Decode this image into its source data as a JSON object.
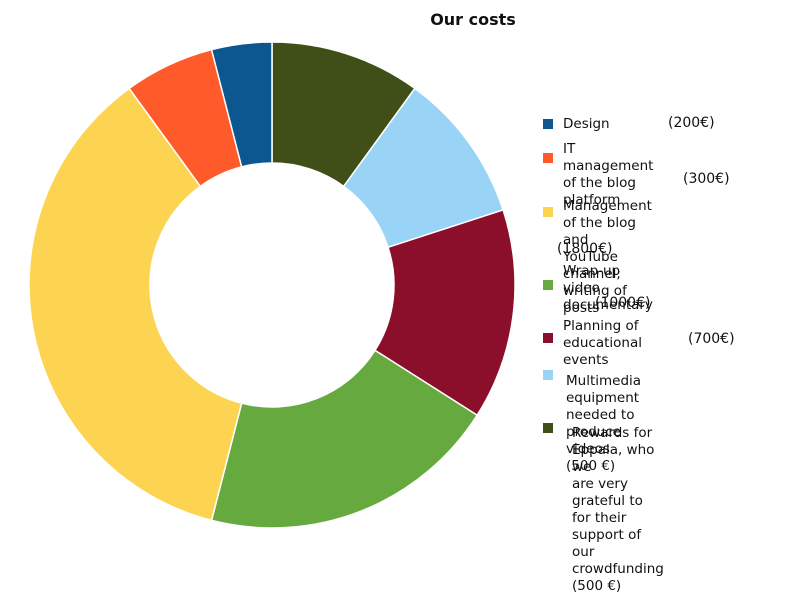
{
  "chart_data": {
    "type": "pie",
    "title": "Our costs",
    "slices": [
      {
        "label": "Rewards  for Eppala, who we\nare very grateful to for their\nsupport of our crowdfunding\n(500 €)",
        "value_label": "",
        "value": 500,
        "color": "#3f4f17"
      },
      {
        "label": "Multimedia equipment needed to\nproduce videos   (500 €)",
        "value_label": "",
        "value": 500,
        "color": "#99d4f7"
      },
      {
        "label": "Planning of\neducational\nevents",
        "value_label": "(700€)",
        "value": 700,
        "color": "#8b0f2b"
      },
      {
        "label": "Wrap-up video documentary",
        "value_label": "(1000€)",
        "value": 1000,
        "color": "#66aa3f"
      },
      {
        "label": "Management of the blog and\nYouTube channel; writing of posts",
        "value_label": "(1800€)",
        "value": 1800,
        "color": "#fdd452"
      },
      {
        "label": "IT management\nof the blog\nplatform",
        "value_label": "(300€)",
        "value": 300,
        "color": "#ff5a2a"
      },
      {
        "label": "Design",
        "value_label": "(200€)",
        "value": 200,
        "color": "#0d5790"
      }
    ],
    "legend_order": [
      6,
      5,
      4,
      3,
      2,
      1,
      0
    ],
    "legend_placement": "right"
  }
}
